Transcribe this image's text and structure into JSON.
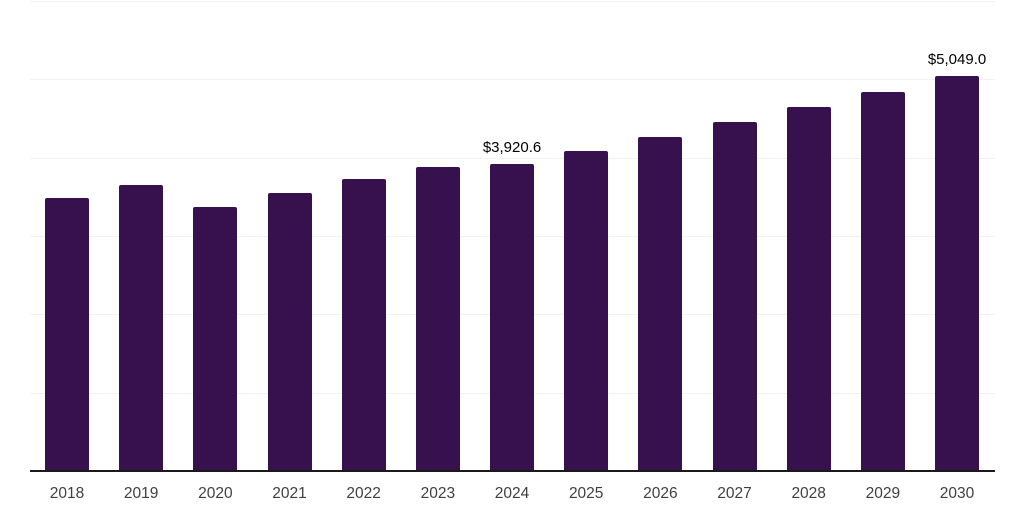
{
  "chart_data": {
    "type": "bar",
    "title": "",
    "xlabel": "",
    "ylabel": "",
    "categories": [
      "2018",
      "2019",
      "2020",
      "2021",
      "2022",
      "2023",
      "2024",
      "2025",
      "2026",
      "2027",
      "2028",
      "2029",
      "2030"
    ],
    "values": [
      3480,
      3650,
      3370,
      3545,
      3730,
      3880,
      3920.6,
      4089.6,
      4266.0,
      4450.0,
      4641.9,
      4842.6,
      5049.0
    ],
    "data_labels": [
      "",
      "",
      "",
      "",
      "",
      "",
      "$3,920.6",
      "",
      "",
      "",
      "",
      "",
      "$5,049.0"
    ],
    "ylim": [
      0,
      6000
    ],
    "gridline_values": [
      1000,
      2000,
      3000,
      4000,
      5000,
      6000
    ],
    "grid": "horizontal-only",
    "legend_position": "none",
    "y_axis_tick_labels_visible": false
  },
  "colors": {
    "bar": "#36114d",
    "gridline": "#f2f2f2",
    "axis_line": "#1a1a1a",
    "tick_label": "#404040",
    "data_label": "#000000",
    "background": "#ffffff"
  }
}
